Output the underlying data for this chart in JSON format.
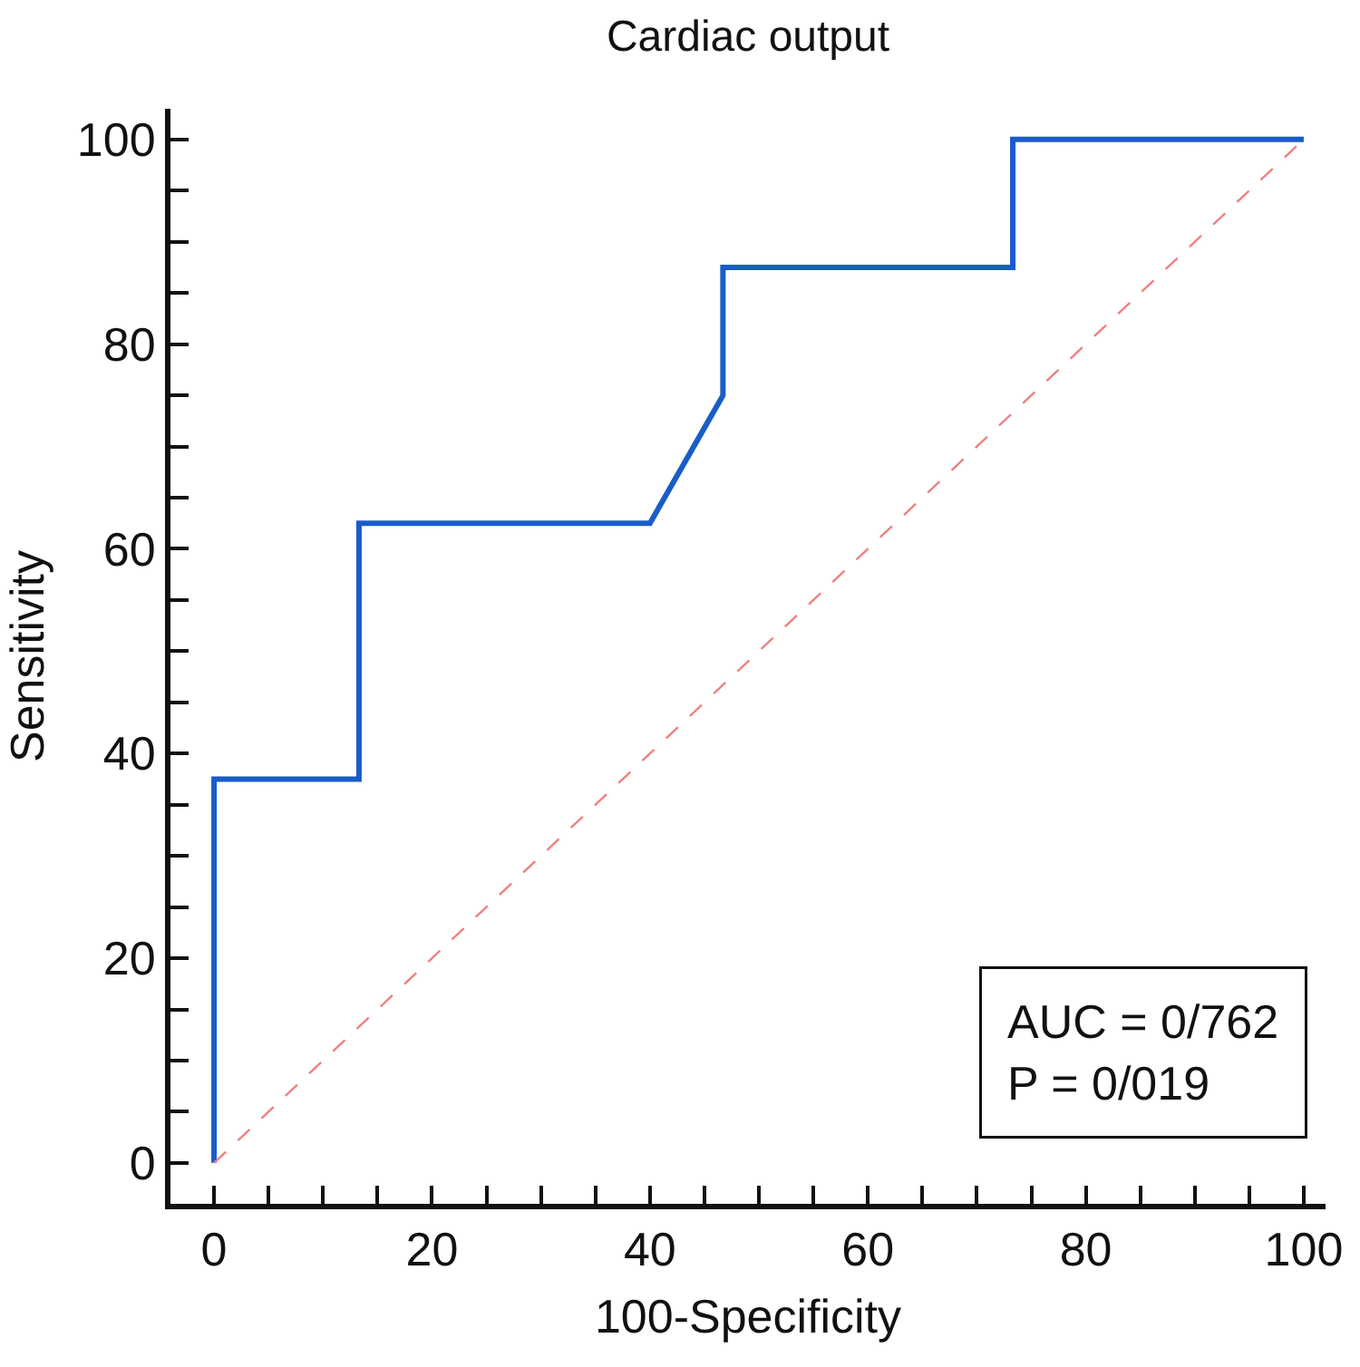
{
  "chart_data": {
    "type": "line",
    "title": "Cardiac output",
    "xlabel": "100-Specificity",
    "ylabel": "Sensitivity",
    "series": [
      {
        "color": "#1a5cc8",
        "x": [
          0,
          0,
          13.3,
          13.3,
          40,
          46.7,
          46.7,
          73.3,
          73.3,
          100
        ],
        "values": [
          0,
          37.5,
          37.5,
          62.5,
          62.5,
          75,
          87.5,
          87.5,
          100,
          100
        ]
      },
      {
        "color": "#f08080",
        "line_style": "dashed",
        "x": [
          0,
          100
        ],
        "values": [
          0,
          100
        ]
      }
    ],
    "xlim": [
      -4,
      102
    ],
    "ylim": [
      -4,
      103
    ],
    "xticks": [
      0,
      {
        "value": 5,
        "label": null
      },
      {
        "value": 10,
        "label": null
      },
      {
        "value": 15,
        "label": null
      },
      20,
      {
        "value": 25,
        "label": null
      },
      {
        "value": 30,
        "label": null
      },
      {
        "value": 35,
        "label": null
      },
      40,
      {
        "value": 45,
        "label": null
      },
      {
        "value": 50,
        "label": null
      },
      {
        "value": 55,
        "label": null
      },
      60,
      {
        "value": 65,
        "label": null
      },
      {
        "value": 70,
        "label": null
      },
      {
        "value": 75,
        "label": null
      },
      80,
      {
        "value": 85,
        "label": null
      },
      {
        "value": 90,
        "label": null
      },
      {
        "value": 95,
        "label": null
      },
      100
    ],
    "yticks": [
      0,
      {
        "value": 5,
        "label": null
      },
      {
        "value": 10,
        "label": null
      },
      {
        "value": 15,
        "label": null
      },
      20,
      {
        "value": 25,
        "label": null
      },
      {
        "value": 30,
        "label": null
      },
      {
        "value": 35,
        "label": null
      },
      40,
      {
        "value": 45,
        "label": null
      },
      {
        "value": 50,
        "label": null
      },
      {
        "value": 55,
        "label": null
      },
      60,
      {
        "value": 65,
        "label": null
      },
      {
        "value": 70,
        "label": null
      },
      {
        "value": 75,
        "label": null
      },
      80,
      {
        "value": 85,
        "label": null
      },
      {
        "value": 90,
        "label": null
      },
      {
        "value": 95,
        "label": null
      },
      100
    ],
    "annotations": [
      "AUC = 0/762",
      "P = 0/019"
    ],
    "grid": false,
    "marker": "none",
    "line_style": "solid"
  }
}
